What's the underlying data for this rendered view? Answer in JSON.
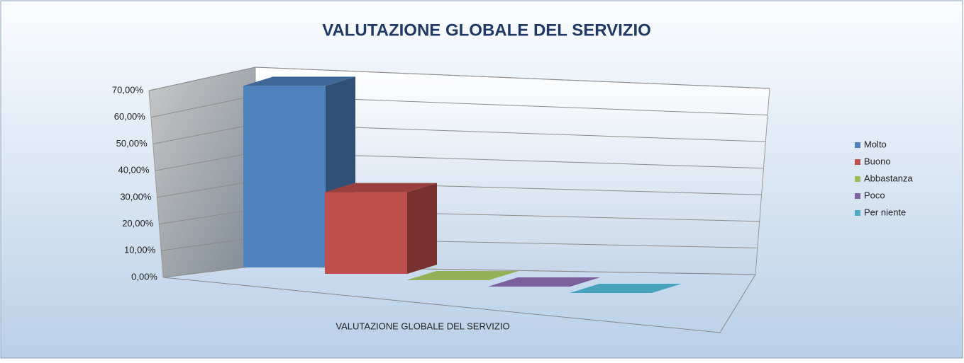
{
  "chart_data": {
    "type": "bar3d",
    "title": "VALUTAZIONE GLOBALE DEL SERVIZIO",
    "categories": [
      "VALUTAZIONE GLOBALE DEL SERVIZIO"
    ],
    "series": [
      {
        "name": "Molto",
        "color": "#4f81bd",
        "values": [
          69
        ]
      },
      {
        "name": "Buono",
        "color": "#c0504d",
        "values": [
          31
        ]
      },
      {
        "name": "Abbastanza",
        "color": "#9bbb59",
        "values": [
          0
        ]
      },
      {
        "name": "Poco",
        "color": "#8064a2",
        "values": [
          0
        ]
      },
      {
        "name": "Per niente",
        "color": "#4bacc6",
        "values": [
          0
        ]
      }
    ],
    "ylim": [
      0,
      70
    ],
    "yticks": [
      {
        "value": 0,
        "label": "0,00%"
      },
      {
        "value": 10,
        "label": "10,00%"
      },
      {
        "value": 20,
        "label": "20,00%"
      },
      {
        "value": 30,
        "label": "30,00%"
      },
      {
        "value": 40,
        "label": "40,00%"
      },
      {
        "value": 50,
        "label": "50,00%"
      },
      {
        "value": 60,
        "label": "60,00%"
      },
      {
        "value": 70,
        "label": "70,00%"
      }
    ],
    "grid": true,
    "legend": "right"
  }
}
